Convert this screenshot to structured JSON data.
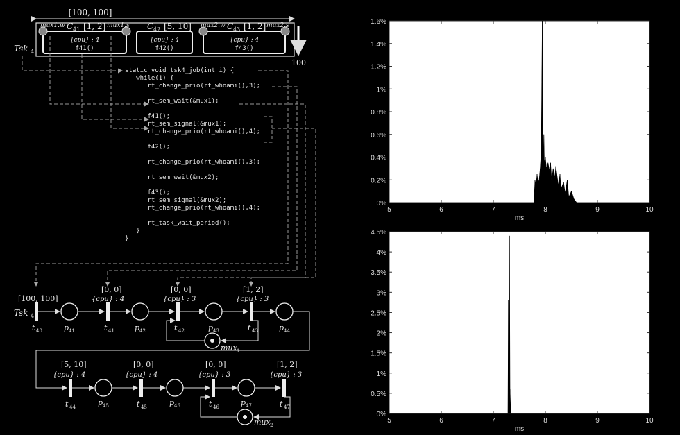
{
  "task_diagram": {
    "period_label": "[100, 100]",
    "deadline_label": "100",
    "task_label": "Tsk",
    "task_sub": "4",
    "chunks": [
      {
        "name": "C",
        "sub": "41",
        "interval": "[1, 2]",
        "res": "{cpu} : 4",
        "func": "f41()",
        "left_mux": "mux1.w",
        "right_mux": "mux1.s"
      },
      {
        "name": "C",
        "sub": "42",
        "interval": "[5, 10]",
        "res": "{cpu} : 4",
        "func": "f42()",
        "left_mux": "",
        "right_mux": ""
      },
      {
        "name": "C",
        "sub": "43",
        "interval": "[1, 2]",
        "res": "{cpu} : 4",
        "func": "f43()",
        "left_mux": "mux2.w",
        "right_mux": "mux2.s"
      }
    ]
  },
  "code_lines": [
    "static void tsk4_job(int i) {",
    "   while(1) {",
    "      rt_change_prio(rt_whoami(),3);",
    "",
    "      rt_sem_wait(&mux1);",
    "",
    "      f41();",
    "      rt_sem_signal(&mux1);",
    "      rt_change_prio(rt_whoami(),4);",
    "",
    "      f42();",
    "",
    "      rt_change_prio(rt_whoami(),3);",
    "",
    "      rt_sem_wait(&mux2);",
    "",
    "      f43();",
    "      rt_sem_signal(&mux2);",
    "      rt_change_prio(rt_whoami(),4);",
    "",
    "      rt_task_wait_period();",
    "   }",
    "}"
  ],
  "petri_net": {
    "row1": {
      "transitions": [
        {
          "name": "t",
          "sub": "40",
          "interval": "[100, 100]",
          "res": ""
        },
        {
          "name": "t",
          "sub": "41",
          "interval": "[0, 0]",
          "res": "{cpu} : 4"
        },
        {
          "name": "t",
          "sub": "42",
          "interval": "[0, 0]",
          "res": "{cpu} : 3"
        },
        {
          "name": "t",
          "sub": "43",
          "interval": "[1, 2]",
          "res": "{cpu} : 3"
        }
      ],
      "places": [
        {
          "name": "p",
          "sub": "41"
        },
        {
          "name": "p",
          "sub": "42"
        },
        {
          "name": "p",
          "sub": "43"
        },
        {
          "name": "p",
          "sub": "44"
        }
      ],
      "mutex": {
        "name": "mux",
        "sub": "1"
      },
      "task_label": "Tsk",
      "task_sub": "4"
    },
    "row2": {
      "transitions": [
        {
          "name": "t",
          "sub": "44",
          "interval": "[5, 10]",
          "res": "{cpu} : 4"
        },
        {
          "name": "t",
          "sub": "45",
          "interval": "[0, 0]",
          "res": "{cpu} : 4"
        },
        {
          "name": "t",
          "sub": "46",
          "interval": "[0, 0]",
          "res": "{cpu} : 3"
        },
        {
          "name": "t",
          "sub": "47",
          "interval": "[1, 2]",
          "res": "{cpu} : 3"
        }
      ],
      "places": [
        {
          "name": "p",
          "sub": "45"
        },
        {
          "name": "p",
          "sub": "46"
        },
        {
          "name": "p",
          "sub": "47"
        }
      ],
      "mutex": {
        "name": "mux",
        "sub": "2"
      }
    }
  },
  "chart_data": [
    {
      "type": "area",
      "xlabel": "ms",
      "ylabel": "",
      "xlim": [
        5,
        10
      ],
      "ylim": [
        0,
        1.6
      ],
      "xticks": [
        "5",
        "6",
        "7",
        "8",
        "9",
        "10"
      ],
      "yticks": [
        "0%",
        "0.2%",
        "0.4%",
        "0.6%",
        "0.8%",
        "1%",
        "1.2%",
        "1.4%",
        "1.6%"
      ],
      "x": [
        7.78,
        7.8,
        7.82,
        7.84,
        7.86,
        7.88,
        7.9,
        7.92,
        7.94,
        7.95,
        7.96,
        7.97,
        7.98,
        8.0,
        8.02,
        8.05,
        8.08,
        8.1,
        8.12,
        8.15,
        8.18,
        8.2,
        8.25,
        8.28,
        8.3,
        8.35,
        8.38,
        8.42,
        8.45,
        8.5,
        8.55,
        8.6
      ],
      "values": [
        0.0,
        0.2,
        0.15,
        0.25,
        0.18,
        0.2,
        0.3,
        0.45,
        1.6,
        0.5,
        0.4,
        0.6,
        0.35,
        0.4,
        0.3,
        0.35,
        0.28,
        0.35,
        0.2,
        0.3,
        0.22,
        0.32,
        0.15,
        0.25,
        0.12,
        0.18,
        0.08,
        0.2,
        0.05,
        0.1,
        0.03,
        0.0
      ]
    },
    {
      "type": "area",
      "xlabel": "ms",
      "ylabel": "",
      "xlim": [
        5,
        10
      ],
      "ylim": [
        0,
        4.5
      ],
      "xticks": [
        "5",
        "6",
        "7",
        "8",
        "9",
        "10"
      ],
      "yticks": [
        "0%",
        "0.5%",
        "1%",
        "1.5%",
        "2%",
        "2.5%",
        "3%",
        "3.5%",
        "4%",
        "4.5%"
      ],
      "x": [
        7.28,
        7.29,
        7.3,
        7.31,
        7.32,
        7.33,
        7.34
      ],
      "values": [
        0.0,
        2.8,
        1.5,
        4.4,
        0.6,
        0.2,
        0.0
      ]
    }
  ]
}
